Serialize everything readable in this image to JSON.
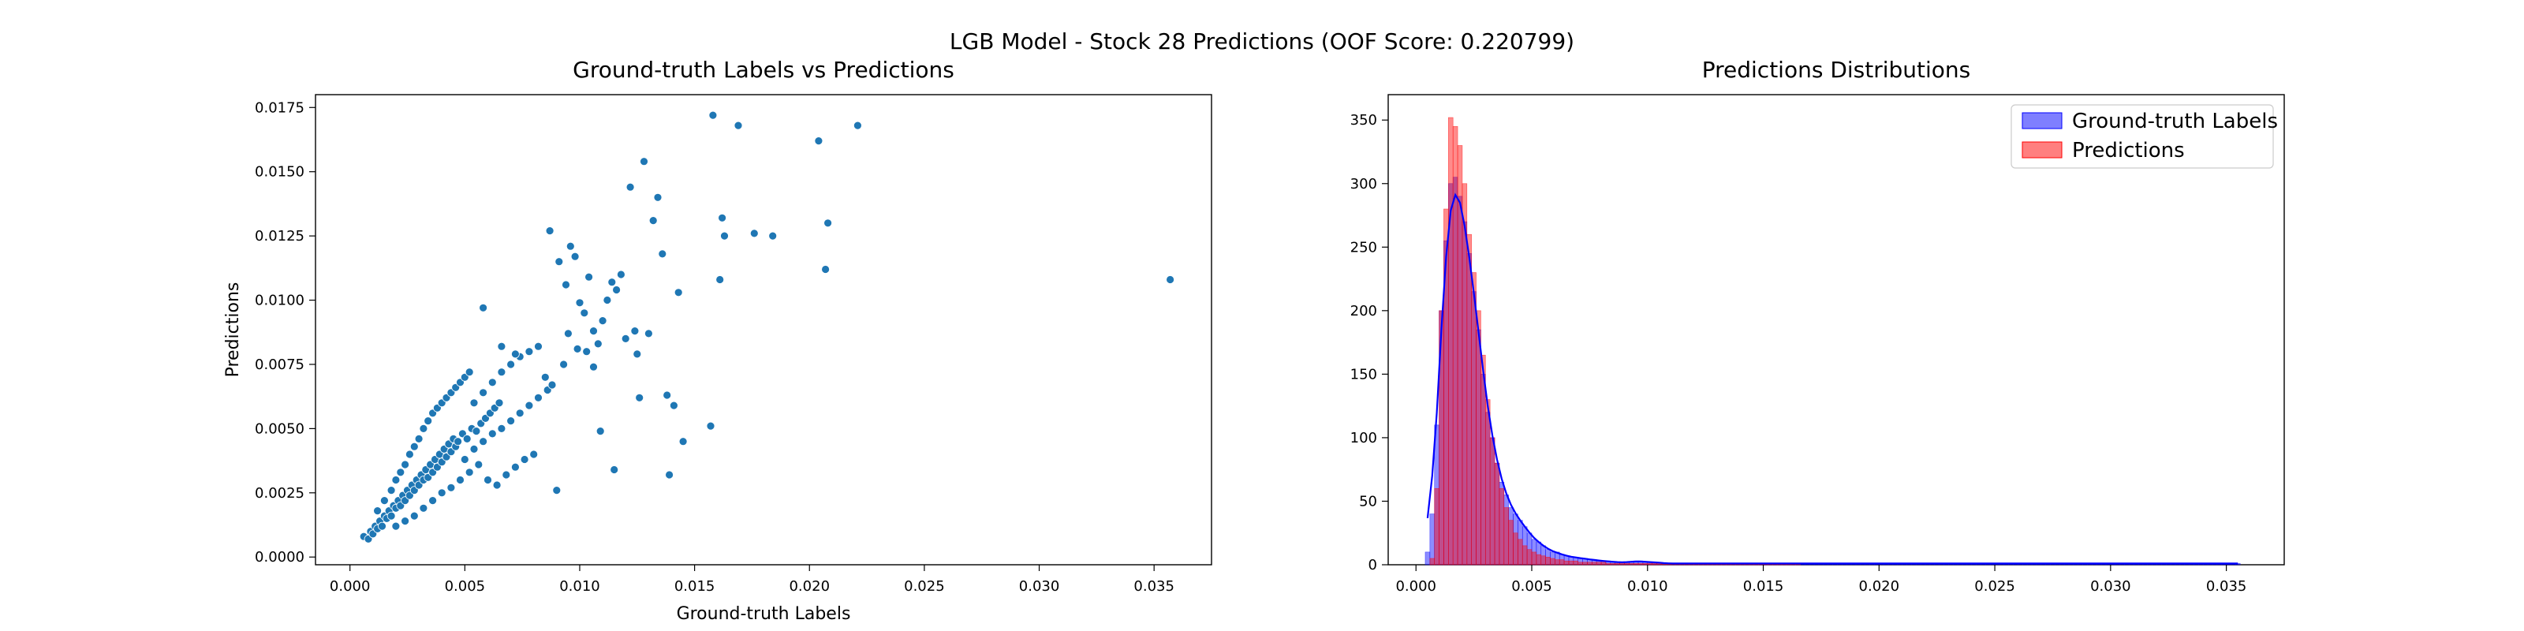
{
  "figure": {
    "suptitle": "LGB Model - Stock 28 Predictions (OOF Score: 0.220799)"
  },
  "chart_data": [
    {
      "type": "scatter",
      "title": "Ground-truth Labels vs Predictions",
      "xlabel": "Ground-truth Labels",
      "ylabel": "Predictions",
      "xlim": [
        -0.0015,
        0.0375
      ],
      "ylim": [
        -0.0003,
        0.018
      ],
      "xticks": [
        0.0,
        0.005,
        0.01,
        0.015,
        0.02,
        0.025,
        0.03,
        0.035
      ],
      "xtick_labels": [
        "0.000",
        "0.005",
        "0.010",
        "0.015",
        "0.020",
        "0.025",
        "0.030",
        "0.035"
      ],
      "yticks": [
        0.0,
        0.0025,
        0.005,
        0.0075,
        0.01,
        0.0125,
        0.015,
        0.0175
      ],
      "ytick_labels": [
        "0.0000",
        "0.0025",
        "0.0050",
        "0.0075",
        "0.0100",
        "0.0125",
        "0.0150",
        "0.0175"
      ],
      "marker_color": "#1f77b4",
      "grid": false,
      "points": [
        [
          0.0006,
          0.0008
        ],
        [
          0.0008,
          0.0007
        ],
        [
          0.0009,
          0.001
        ],
        [
          0.001,
          0.0009
        ],
        [
          0.0011,
          0.0012
        ],
        [
          0.0012,
          0.0011
        ],
        [
          0.0013,
          0.0014
        ],
        [
          0.0014,
          0.0012
        ],
        [
          0.0015,
          0.0016
        ],
        [
          0.0016,
          0.0015
        ],
        [
          0.0017,
          0.0018
        ],
        [
          0.0018,
          0.0016
        ],
        [
          0.0019,
          0.002
        ],
        [
          0.002,
          0.0019
        ],
        [
          0.0021,
          0.0022
        ],
        [
          0.0022,
          0.002
        ],
        [
          0.0023,
          0.0024
        ],
        [
          0.0024,
          0.0022
        ],
        [
          0.0025,
          0.0026
        ],
        [
          0.0026,
          0.0024
        ],
        [
          0.0027,
          0.0028
        ],
        [
          0.0028,
          0.0026
        ],
        [
          0.0029,
          0.003
        ],
        [
          0.003,
          0.0028
        ],
        [
          0.0031,
          0.0032
        ],
        [
          0.0032,
          0.003
        ],
        [
          0.0033,
          0.0034
        ],
        [
          0.0034,
          0.0031
        ],
        [
          0.0035,
          0.0036
        ],
        [
          0.0036,
          0.0033
        ],
        [
          0.0037,
          0.0038
        ],
        [
          0.0038,
          0.0035
        ],
        [
          0.0039,
          0.004
        ],
        [
          0.004,
          0.0037
        ],
        [
          0.0041,
          0.0042
        ],
        [
          0.0042,
          0.0039
        ],
        [
          0.0043,
          0.0044
        ],
        [
          0.0044,
          0.0041
        ],
        [
          0.0045,
          0.0046
        ],
        [
          0.0046,
          0.0043
        ],
        [
          0.0012,
          0.0018
        ],
        [
          0.0015,
          0.0022
        ],
        [
          0.0018,
          0.0026
        ],
        [
          0.002,
          0.003
        ],
        [
          0.0022,
          0.0033
        ],
        [
          0.0024,
          0.0036
        ],
        [
          0.0026,
          0.004
        ],
        [
          0.0028,
          0.0043
        ],
        [
          0.003,
          0.0046
        ],
        [
          0.0032,
          0.005
        ],
        [
          0.0034,
          0.0053
        ],
        [
          0.0036,
          0.0056
        ],
        [
          0.0038,
          0.0058
        ],
        [
          0.004,
          0.006
        ],
        [
          0.0042,
          0.0062
        ],
        [
          0.0044,
          0.0064
        ],
        [
          0.0046,
          0.0066
        ],
        [
          0.0048,
          0.0068
        ],
        [
          0.005,
          0.007
        ],
        [
          0.0052,
          0.0072
        ],
        [
          0.002,
          0.0012
        ],
        [
          0.0024,
          0.0014
        ],
        [
          0.0028,
          0.0016
        ],
        [
          0.0032,
          0.0019
        ],
        [
          0.0036,
          0.0022
        ],
        [
          0.004,
          0.0025
        ],
        [
          0.0044,
          0.0027
        ],
        [
          0.0048,
          0.003
        ],
        [
          0.0052,
          0.0033
        ],
        [
          0.0056,
          0.0036
        ],
        [
          0.0047,
          0.0045
        ],
        [
          0.0049,
          0.0048
        ],
        [
          0.0051,
          0.0046
        ],
        [
          0.0053,
          0.005
        ],
        [
          0.0055,
          0.0049
        ],
        [
          0.0057,
          0.0052
        ],
        [
          0.0059,
          0.0054
        ],
        [
          0.0061,
          0.0056
        ],
        [
          0.0063,
          0.0058
        ],
        [
          0.0065,
          0.006
        ],
        [
          0.005,
          0.0038
        ],
        [
          0.0054,
          0.0042
        ],
        [
          0.0058,
          0.0045
        ],
        [
          0.0062,
          0.0048
        ],
        [
          0.0066,
          0.005
        ],
        [
          0.007,
          0.0053
        ],
        [
          0.0074,
          0.0056
        ],
        [
          0.0078,
          0.0059
        ],
        [
          0.0082,
          0.0062
        ],
        [
          0.0086,
          0.0065
        ],
        [
          0.0054,
          0.006
        ],
        [
          0.0058,
          0.0064
        ],
        [
          0.0062,
          0.0068
        ],
        [
          0.0066,
          0.0072
        ],
        [
          0.007,
          0.0075
        ],
        [
          0.0074,
          0.0078
        ],
        [
          0.0078,
          0.008
        ],
        [
          0.0082,
          0.0082
        ],
        [
          0.0085,
          0.007
        ],
        [
          0.0088,
          0.0067
        ],
        [
          0.006,
          0.003
        ],
        [
          0.0064,
          0.0028
        ],
        [
          0.0068,
          0.0032
        ],
        [
          0.0072,
          0.0035
        ],
        [
          0.0076,
          0.0038
        ],
        [
          0.008,
          0.004
        ],
        [
          0.009,
          0.0026
        ],
        [
          0.0058,
          0.0097
        ],
        [
          0.0066,
          0.0082
        ],
        [
          0.0072,
          0.0079
        ],
        [
          0.0087,
          0.0127
        ],
        [
          0.0091,
          0.0115
        ],
        [
          0.0094,
          0.0106
        ],
        [
          0.0096,
          0.0121
        ],
        [
          0.0098,
          0.0117
        ],
        [
          0.01,
          0.0099
        ],
        [
          0.0102,
          0.0095
        ],
        [
          0.0104,
          0.0109
        ],
        [
          0.0106,
          0.0088
        ],
        [
          0.0108,
          0.0083
        ],
        [
          0.011,
          0.0092
        ],
        [
          0.0112,
          0.01
        ],
        [
          0.0114,
          0.0107
        ],
        [
          0.0116,
          0.0104
        ],
        [
          0.0118,
          0.011
        ],
        [
          0.012,
          0.0085
        ],
        [
          0.0122,
          0.0144
        ],
        [
          0.0124,
          0.0088
        ],
        [
          0.0126,
          0.0062
        ],
        [
          0.0128,
          0.0154
        ],
        [
          0.013,
          0.0087
        ],
        [
          0.0132,
          0.0131
        ],
        [
          0.0134,
          0.014
        ],
        [
          0.0136,
          0.0118
        ],
        [
          0.0138,
          0.0063
        ],
        [
          0.0139,
          0.0032
        ],
        [
          0.0141,
          0.0059
        ],
        [
          0.0143,
          0.0103
        ],
        [
          0.0145,
          0.0045
        ],
        [
          0.0157,
          0.0051
        ],
        [
          0.0158,
          0.0172
        ],
        [
          0.0161,
          0.0108
        ],
        [
          0.0162,
          0.0132
        ],
        [
          0.0163,
          0.0125
        ],
        [
          0.0169,
          0.0168
        ],
        [
          0.0176,
          0.0126
        ],
        [
          0.0184,
          0.0125
        ],
        [
          0.0204,
          0.0162
        ],
        [
          0.0207,
          0.0112
        ],
        [
          0.0208,
          0.013
        ],
        [
          0.0221,
          0.0168
        ],
        [
          0.0357,
          0.0108
        ],
        [
          0.0106,
          0.0074
        ],
        [
          0.0115,
          0.0034
        ],
        [
          0.0109,
          0.0049
        ],
        [
          0.0095,
          0.0087
        ],
        [
          0.0103,
          0.008
        ],
        [
          0.0125,
          0.0079
        ],
        [
          0.0099,
          0.0081
        ],
        [
          0.0093,
          0.0075
        ]
      ]
    },
    {
      "type": "histogram",
      "title": "Predictions Distributions",
      "xlabel": "",
      "ylabel": "",
      "xlim": [
        -0.0012,
        0.0375
      ],
      "ylim": [
        0,
        370
      ],
      "xticks": [
        0.0,
        0.005,
        0.01,
        0.015,
        0.02,
        0.025,
        0.03,
        0.035
      ],
      "xtick_labels": [
        "0.000",
        "0.005",
        "0.010",
        "0.015",
        "0.020",
        "0.025",
        "0.030",
        "0.035"
      ],
      "yticks": [
        0,
        50,
        100,
        150,
        200,
        250,
        300,
        350
      ],
      "ytick_labels": [
        "0",
        "50",
        "100",
        "150",
        "200",
        "250",
        "300",
        "350"
      ],
      "grid": false,
      "legend_position": "top-right",
      "bin_width": 0.0002,
      "series": [
        {
          "name": "Ground-truth Labels",
          "color": "#0000ff",
          "bin_start": 0.0004,
          "counts": [
            10,
            40,
            110,
            200,
            255,
            300,
            305,
            290,
            270,
            245,
            215,
            185,
            150,
            120,
            100,
            80,
            65,
            55,
            45,
            40,
            35,
            30,
            25,
            20,
            18,
            15,
            12,
            10,
            10,
            8,
            7,
            6,
            6,
            5,
            5,
            4,
            4,
            3,
            3,
            3,
            2,
            2,
            2,
            2,
            2,
            3,
            3,
            2,
            2,
            2,
            2,
            1,
            1,
            1,
            1,
            1,
            1,
            1,
            1,
            1,
            1,
            1,
            1,
            1,
            1,
            1,
            1,
            1,
            1,
            1,
            1,
            1,
            1,
            1,
            1,
            1,
            1,
            1,
            1,
            1,
            1,
            1,
            1,
            1,
            1,
            1,
            1,
            1,
            1,
            1,
            1,
            1,
            1,
            1,
            1,
            1,
            1,
            1,
            1,
            1,
            1,
            1,
            1,
            1,
            1,
            1,
            1,
            1,
            1,
            1,
            1,
            1,
            1,
            1,
            1,
            1,
            1,
            1,
            1,
            1,
            1,
            1,
            1,
            1,
            1,
            1,
            1,
            1,
            1,
            1,
            1,
            1,
            1,
            1,
            1,
            1,
            1,
            1,
            1,
            1,
            1,
            1,
            1,
            1,
            1,
            1,
            1,
            1,
            1,
            1,
            1,
            1,
            1,
            1,
            1,
            1,
            1,
            1,
            1,
            1,
            1,
            1,
            1,
            1,
            1,
            1,
            1,
            1,
            1,
            1,
            1,
            1,
            1,
            1,
            1,
            1
          ]
        },
        {
          "name": "Predictions",
          "color": "#ff0000",
          "bin_start": 0.0006,
          "counts": [
            5,
            60,
            200,
            280,
            352,
            345,
            330,
            300,
            260,
            230,
            200,
            165,
            130,
            100,
            80,
            60,
            45,
            35,
            25,
            20,
            15,
            12,
            10,
            8,
            7,
            6,
            5,
            4,
            4,
            3,
            3,
            3,
            2,
            2,
            2,
            2,
            2,
            2,
            1,
            1,
            1,
            1,
            1,
            1,
            1,
            1,
            1,
            1,
            1,
            1,
            1,
            1,
            1,
            1,
            1,
            1,
            1,
            1,
            1,
            1,
            1,
            1,
            1,
            1,
            1,
            1,
            1,
            1,
            1,
            1,
            1,
            1,
            1,
            1,
            1,
            1,
            1,
            1,
            1,
            1
          ]
        }
      ],
      "kde_color": "#0000ff"
    }
  ]
}
